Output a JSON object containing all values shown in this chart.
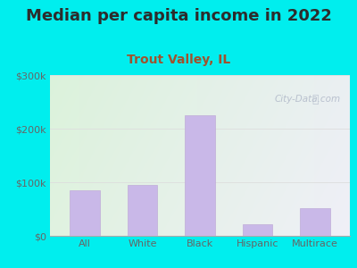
{
  "title": "Median per capita income in 2022",
  "subtitle": "Trout Valley, IL",
  "categories": [
    "All",
    "White",
    "Black",
    "Hispanic",
    "Multirace"
  ],
  "values": [
    85000,
    95000,
    225000,
    22000,
    52000
  ],
  "bar_color": "#c9b8e8",
  "bar_edge_color": "#c0add8",
  "title_fontsize": 13.0,
  "subtitle_fontsize": 10,
  "subtitle_color": "#a0522d",
  "title_color": "#2c2c2c",
  "tick_label_color": "#666666",
  "ylim": [
    0,
    300000
  ],
  "yticks": [
    0,
    100000,
    200000,
    300000
  ],
  "ytick_labels": [
    "$0",
    "$100k",
    "$200k",
    "$300k"
  ],
  "background_outer": "#00EEEE",
  "grid_color": "#dddddd",
  "watermark_text": "City-Data.com"
}
